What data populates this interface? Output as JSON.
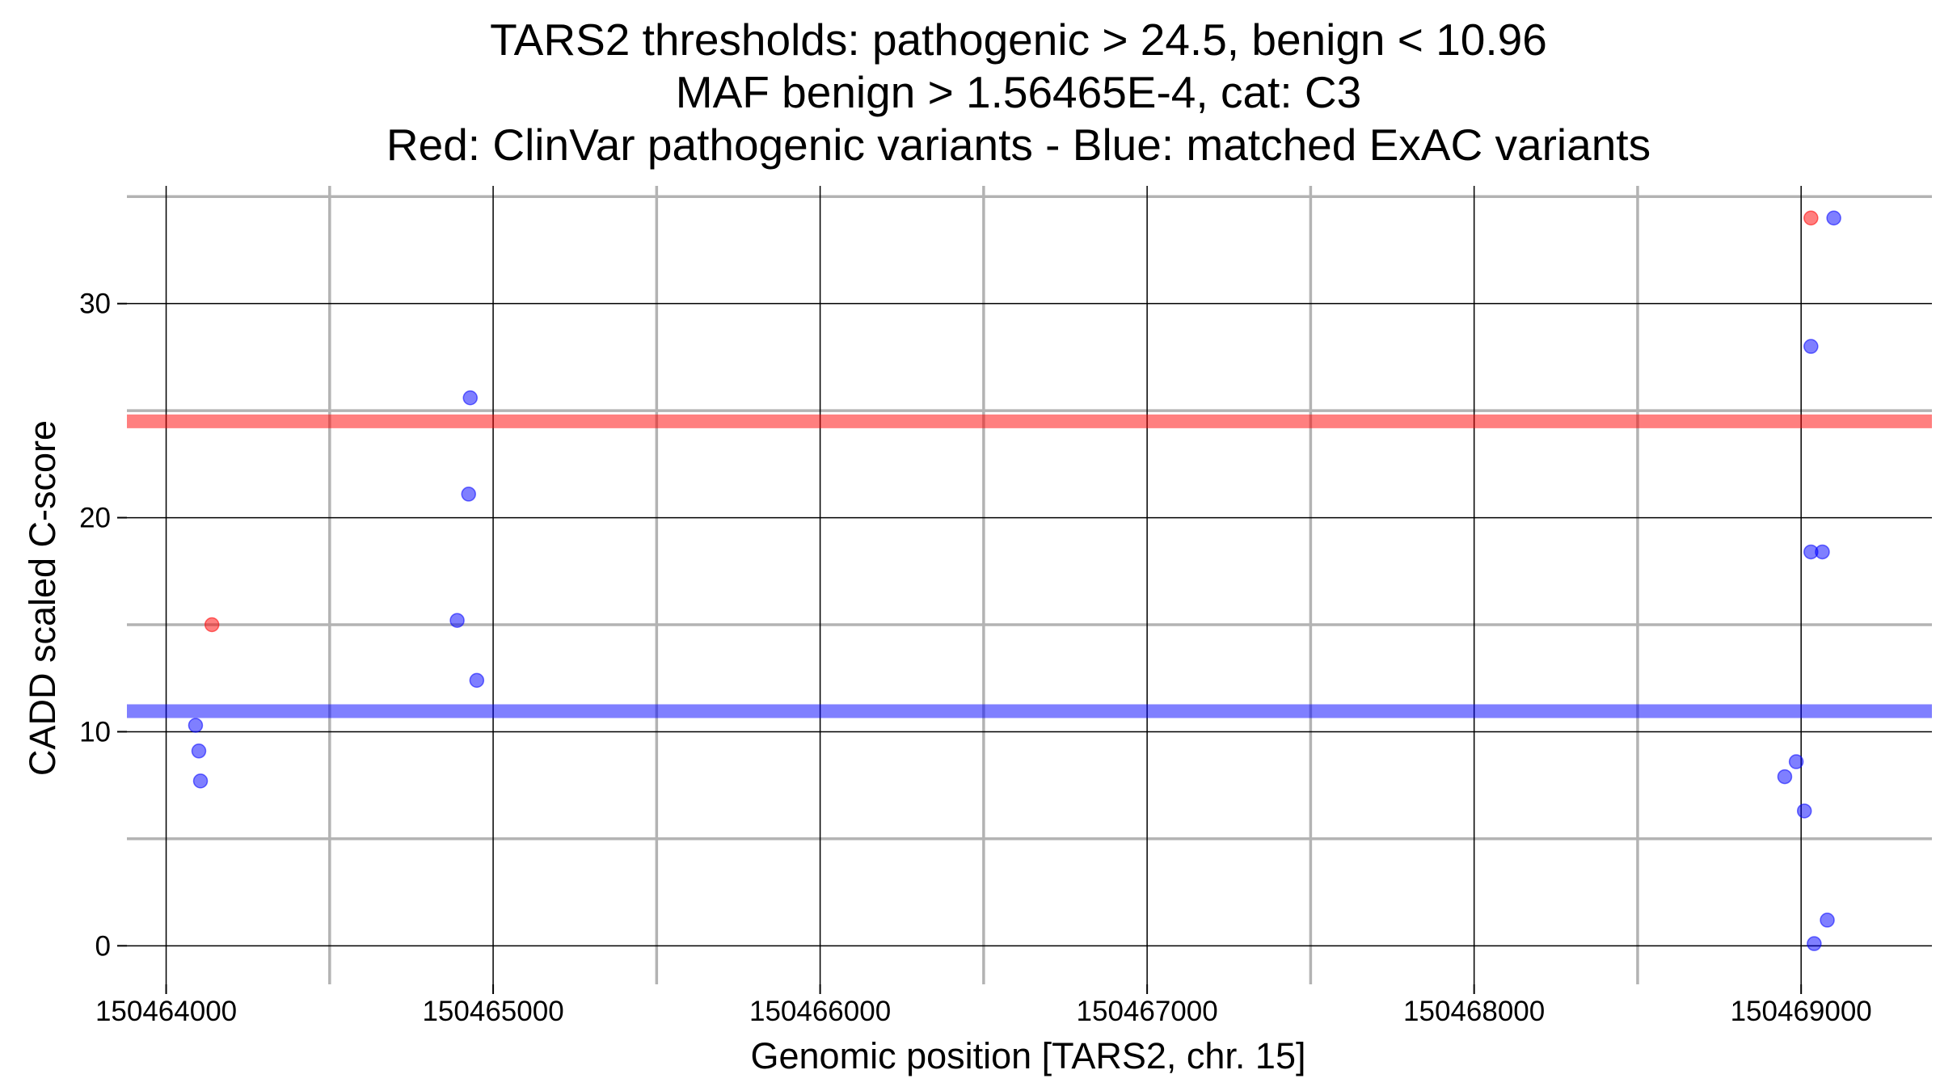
{
  "chart_data": {
    "type": "scatter",
    "title": [
      "TARS2 thresholds: pathogenic > 24.5, benign < 10.96",
      "MAF benign > 1.56465E-4, cat: C3",
      "Red: ClinVar pathogenic variants - Blue: matched ExAC variants"
    ],
    "xlabel": "Genomic position [TARS2, chr. 15]",
    "ylabel": "CADD scaled C-score",
    "xlim": [
      150463880,
      150469400
    ],
    "ylim": [
      -1.8,
      35.5
    ],
    "x_ticks": [
      150464000,
      150465000,
      150466000,
      150467000,
      150468000,
      150469000
    ],
    "x_tick_labels": [
      "150464000",
      "150465000",
      "150466000",
      "150467000",
      "150468000",
      "150469000"
    ],
    "y_ticks": [
      0,
      10,
      20,
      30
    ],
    "y_tick_labels": [
      "0",
      "10",
      "20",
      "30"
    ],
    "x_minor_ticks": [
      150464500,
      150465500,
      150466500,
      150467500,
      150468500
    ],
    "y_minor_ticks": [
      5,
      15,
      25,
      35
    ],
    "grid": true,
    "thresholds": [
      {
        "value": 24.5,
        "label": "pathogenic",
        "color": "#ff0000"
      },
      {
        "value": 10.96,
        "label": "benign",
        "color": "#0000ff"
      }
    ],
    "series": [
      {
        "color": "#ff0000",
        "points": [
          {
            "x": 150464140,
            "y": 15.0
          },
          {
            "x": 150469030,
            "y": 34.0
          }
        ]
      },
      {
        "color": "#0000ff",
        "points": [
          {
            "x": 150464090,
            "y": 10.3
          },
          {
            "x": 150464100,
            "y": 9.1
          },
          {
            "x": 150464105,
            "y": 7.7
          },
          {
            "x": 150464930,
            "y": 25.6
          },
          {
            "x": 150464925,
            "y": 21.1
          },
          {
            "x": 150464890,
            "y": 15.2
          },
          {
            "x": 150464950,
            "y": 12.4
          },
          {
            "x": 150469100,
            "y": 34.0
          },
          {
            "x": 150469030,
            "y": 28.0
          },
          {
            "x": 150469030,
            "y": 18.4
          },
          {
            "x": 150469065,
            "y": 18.4
          },
          {
            "x": 150468985,
            "y": 8.6
          },
          {
            "x": 150468950,
            "y": 7.9
          },
          {
            "x": 150469010,
            "y": 6.3
          },
          {
            "x": 150469080,
            "y": 1.2
          },
          {
            "x": 150469040,
            "y": 0.1
          }
        ]
      }
    ]
  }
}
